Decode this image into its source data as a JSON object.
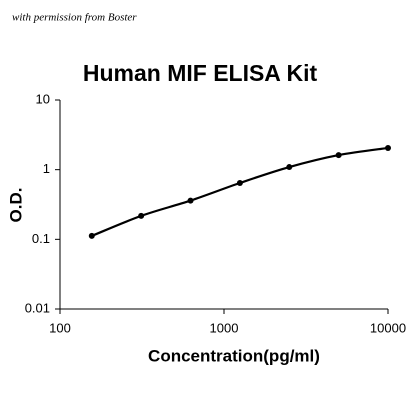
{
  "watermark": "with permission from Boster",
  "chart_data": {
    "type": "scatter",
    "title": "Human MIF ELISA Kit",
    "x_label": "Concentration(pg/ml)",
    "y_label": "O.D.",
    "x": [
      156.25,
      312.5,
      625,
      1250,
      2500,
      5000,
      10000
    ],
    "values": [
      0.112,
      0.217,
      0.36,
      0.644,
      1.09,
      1.62,
      2.05
    ],
    "color": "#000000",
    "line": true,
    "xscale": "log",
    "yscale": "log",
    "xlim": [
      100,
      10000
    ],
    "ylim": [
      0.01,
      10
    ],
    "xticks": [
      100,
      1000,
      10000
    ],
    "yticks": [
      0.01,
      0.1,
      1,
      10
    ]
  }
}
